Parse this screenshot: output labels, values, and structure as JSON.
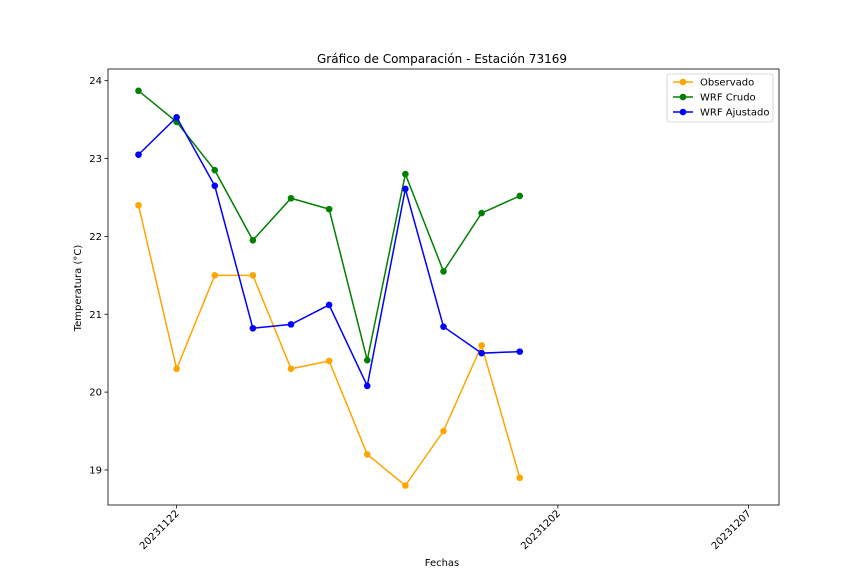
{
  "chart_data": {
    "type": "line",
    "title": "Gráfico de Comparación - Estación 73169",
    "xlabel": "Fechas",
    "ylabel": "Temperatura (°C)",
    "x": [
      "2023-11-21",
      "2023-11-22",
      "2023-11-23",
      "2023-11-24",
      "2023-11-25",
      "2023-11-26",
      "2023-11-27",
      "2023-11-28",
      "2023-11-29",
      "2023-11-30",
      "2023-12-01"
    ],
    "x_tick_values": [
      "2023-11-22",
      "2023-12-02",
      "2023-12-07"
    ],
    "x_tick_labels": [
      "20231122",
      "20231202",
      "20231207"
    ],
    "ylim": [
      18.55,
      24.15
    ],
    "y_ticks": [
      19,
      20,
      21,
      22,
      23,
      24
    ],
    "legend_position": "top-right",
    "grid": false,
    "series": [
      {
        "name": "Observado",
        "color": "#FFA500",
        "values": [
          22.4,
          20.3,
          21.5,
          21.5,
          20.3,
          20.4,
          19.2,
          18.8,
          19.5,
          20.6,
          18.9
        ]
      },
      {
        "name": "WRF Crudo",
        "color": "#008000",
        "values": [
          23.87,
          23.47,
          22.85,
          21.95,
          22.49,
          22.35,
          20.41,
          22.8,
          21.55,
          22.3,
          22.52
        ]
      },
      {
        "name": "WRF Ajustado",
        "color": "#0000FF",
        "values": [
          23.05,
          23.53,
          22.65,
          20.82,
          20.87,
          21.12,
          20.08,
          22.61,
          20.84,
          20.5,
          20.52
        ]
      }
    ]
  }
}
